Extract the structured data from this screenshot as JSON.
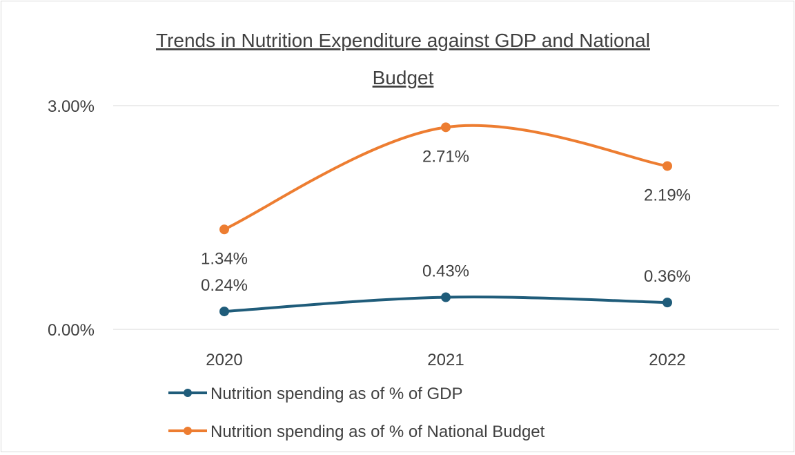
{
  "chart_data": {
    "type": "line",
    "title_lines": [
      "Trends in Nutrition Expenditure against GDP and National",
      "Budget"
    ],
    "categories": [
      "2020",
      "2021",
      "2022"
    ],
    "ylim": [
      0,
      3
    ],
    "yticks": [
      "0.00%",
      "3.00%"
    ],
    "grid": true,
    "smooth": true,
    "legend_position": "bottom",
    "series": [
      {
        "name": "Nutrition spending as of % of GDP",
        "color": "#1f5c7a",
        "values": [
          0.24,
          0.43,
          0.36
        ],
        "labels": [
          "0.24%",
          "0.43%",
          "0.36%"
        ]
      },
      {
        "name": "Nutrition spending as of % of National Budget",
        "color": "#ed7d31",
        "values": [
          1.34,
          2.71,
          2.19
        ],
        "labels": [
          "1.34%",
          "2.71%",
          "2.19%"
        ]
      }
    ]
  }
}
